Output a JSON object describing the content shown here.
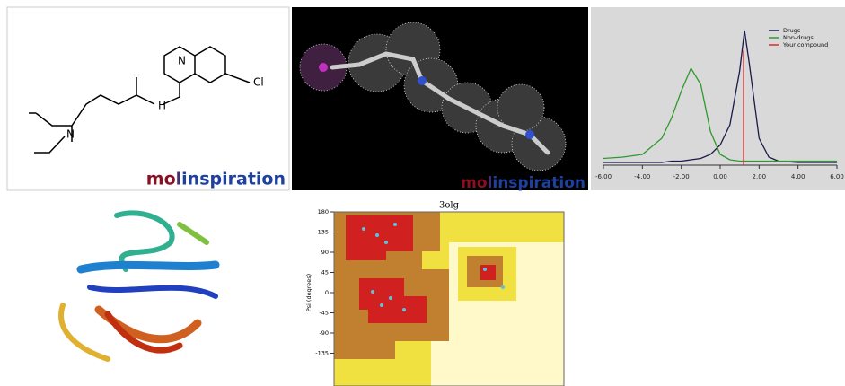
{
  "panels": {
    "molecule": {
      "atoms": [
        "N",
        "H",
        "N",
        "Cl"
      ],
      "logo": "molinspiration"
    },
    "render": {
      "logo": "molinspiration"
    }
  },
  "chart_data": [
    {
      "type": "line",
      "x": [
        -6,
        -5,
        -4,
        -3,
        -2.5,
        -2,
        -1.5,
        -1,
        -0.5,
        0,
        0.5,
        1,
        1.25,
        1.5,
        2,
        2.5,
        3,
        4,
        5,
        6
      ],
      "series": [
        {
          "name": "Drugs",
          "color": "#1a1a4a",
          "values": [
            0.02,
            0.02,
            0.02,
            0.02,
            0.03,
            0.03,
            0.04,
            0.05,
            0.08,
            0.15,
            0.3,
            0.7,
            1.0,
            0.75,
            0.2,
            0.06,
            0.03,
            0.02,
            0.02,
            0.02
          ]
        },
        {
          "name": "Non-drugs",
          "color": "#2e9a2e",
          "values": [
            0.05,
            0.06,
            0.08,
            0.2,
            0.35,
            0.55,
            0.72,
            0.6,
            0.25,
            0.08,
            0.04,
            0.03,
            0.03,
            0.03,
            0.03,
            0.03,
            0.03,
            0.03,
            0.03,
            0.03
          ]
        },
        {
          "name": "Your compound",
          "color": "#d03030",
          "x": [
            1.2,
            1.2
          ],
          "values": [
            0,
            0.85
          ]
        }
      ],
      "xlim": [
        -6,
        6
      ],
      "ylim": [
        0,
        1.08
      ],
      "xticks": [
        {
          "value": -6,
          "label": "-6.00"
        },
        {
          "value": -4,
          "label": "-4.00"
        },
        {
          "value": -2,
          "label": "-2.00"
        },
        {
          "value": 0,
          "label": "0.00"
        },
        {
          "value": 2,
          "label": "2.00"
        },
        {
          "value": 4,
          "label": "4.00"
        },
        {
          "value": 6,
          "label": "6.00"
        }
      ],
      "legend": "top-right"
    },
    {
      "type": "scatter",
      "title": "3olg",
      "ylabel": "Psi (degrees)",
      "ylim": [
        -180,
        180
      ],
      "yticks": [
        180,
        135,
        90,
        45,
        0,
        -45,
        -90,
        -135
      ]
    }
  ]
}
